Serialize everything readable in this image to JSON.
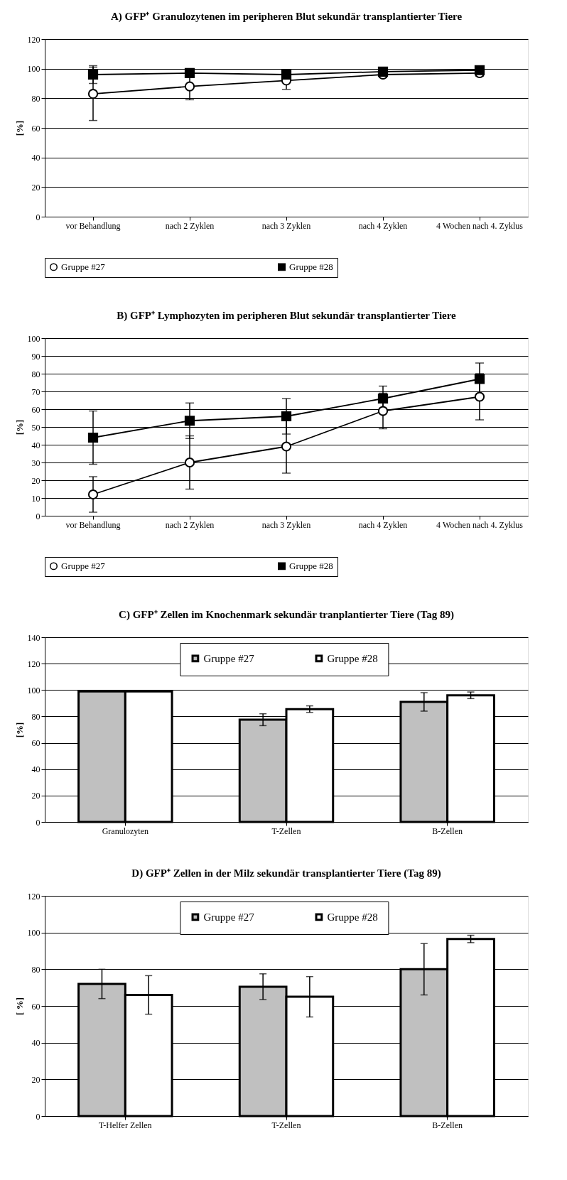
{
  "chart_data": [
    {
      "type": "line",
      "title": "A) GFP⁺ Granulozytenen im peripheren Blut sekundär transplantierter Tiere",
      "ylabel": "[%]",
      "categories": [
        "vor Behandlung",
        "nach 2 Zyklen",
        "nach 3 Zyklen",
        "nach 4 Zyklen",
        "4 Wochen nach 4. Zyklus"
      ],
      "ylim": [
        0,
        120
      ],
      "yticks": [
        0,
        20,
        40,
        60,
        80,
        100,
        120
      ],
      "grid": "y",
      "legend": "bottom",
      "series": [
        {
          "name": "Gruppe #27",
          "color": "#000000",
          "marker": "circle",
          "values": [
            83,
            88,
            92,
            96,
            97
          ],
          "errors": [
            18,
            9,
            6,
            2,
            2
          ]
        },
        {
          "name": "Gruppe #28",
          "color": "#000000",
          "marker": "square",
          "values": [
            96,
            97,
            96,
            98,
            99
          ],
          "errors": [
            6,
            3,
            2,
            1,
            1
          ]
        }
      ]
    },
    {
      "type": "line",
      "title": "B) GFP⁺ Lymphozyten im peripheren Blut sekundär transplantierter Tiere",
      "ylabel": "[%]",
      "categories": [
        "vor Behandlung",
        "nach 2 Zyklen",
        "nach 3 Zyklen",
        "nach 4 Zyklen",
        "4 Wochen nach 4. Zyklus"
      ],
      "ylim": [
        0,
        100
      ],
      "yticks": [
        0,
        10,
        20,
        30,
        40,
        50,
        60,
        70,
        80,
        90,
        100
      ],
      "grid": "y",
      "legend": "bottom",
      "series": [
        {
          "name": "Gruppe #27",
          "color": "#000000",
          "marker": "circle",
          "values": [
            12,
            30,
            39,
            59,
            67
          ],
          "errors": [
            10,
            15,
            15,
            10,
            13
          ]
        },
        {
          "name": "Gruppe #28",
          "color": "#000000",
          "marker": "square",
          "values": [
            44,
            53.5,
            56,
            66,
            77
          ],
          "errors": [
            15,
            10,
            10,
            7,
            9
          ]
        }
      ]
    },
    {
      "type": "bar",
      "title": "C) GFP⁺ Zellen im Knochenmark sekundär tranplantierter Tiere (Tag 89)",
      "ylabel": "[%]",
      "categories": [
        "Granulozyten",
        "T-Zellen",
        "B-Zellen"
      ],
      "ylim": [
        0,
        140
      ],
      "yticks": [
        0,
        20,
        40,
        60,
        80,
        100,
        120,
        140
      ],
      "grid": "y",
      "legend": "top",
      "series": [
        {
          "name": "Gruppe #27",
          "color": "#c0c0c0",
          "values": [
            99,
            77.5,
            91
          ],
          "errors": [
            null,
            4.5,
            7
          ]
        },
        {
          "name": "Gruppe #28",
          "color": "#ffffff",
          "values": [
            99,
            85.5,
            96
          ],
          "errors": [
            null,
            2.5,
            2.5
          ]
        }
      ]
    },
    {
      "type": "bar",
      "title": "D) GFP⁺ Zellen in der Milz sekundär transplantierter Tiere (Tag 89)",
      "ylabel": "[ %]",
      "categories": [
        "T-Helfer Zellen",
        "T-Zellen",
        "B-Zellen"
      ],
      "ylim": [
        0,
        120
      ],
      "yticks": [
        0,
        20,
        40,
        60,
        80,
        100,
        120
      ],
      "grid": "y",
      "legend": "top",
      "series": [
        {
          "name": "Gruppe #27",
          "color": "#c0c0c0",
          "values": [
            72,
            70.5,
            80
          ],
          "errors": [
            8,
            7,
            14
          ]
        },
        {
          "name": "Gruppe #28",
          "color": "#ffffff",
          "values": [
            66,
            65,
            96.5
          ],
          "errors": [
            10.5,
            11,
            2
          ]
        }
      ]
    }
  ]
}
